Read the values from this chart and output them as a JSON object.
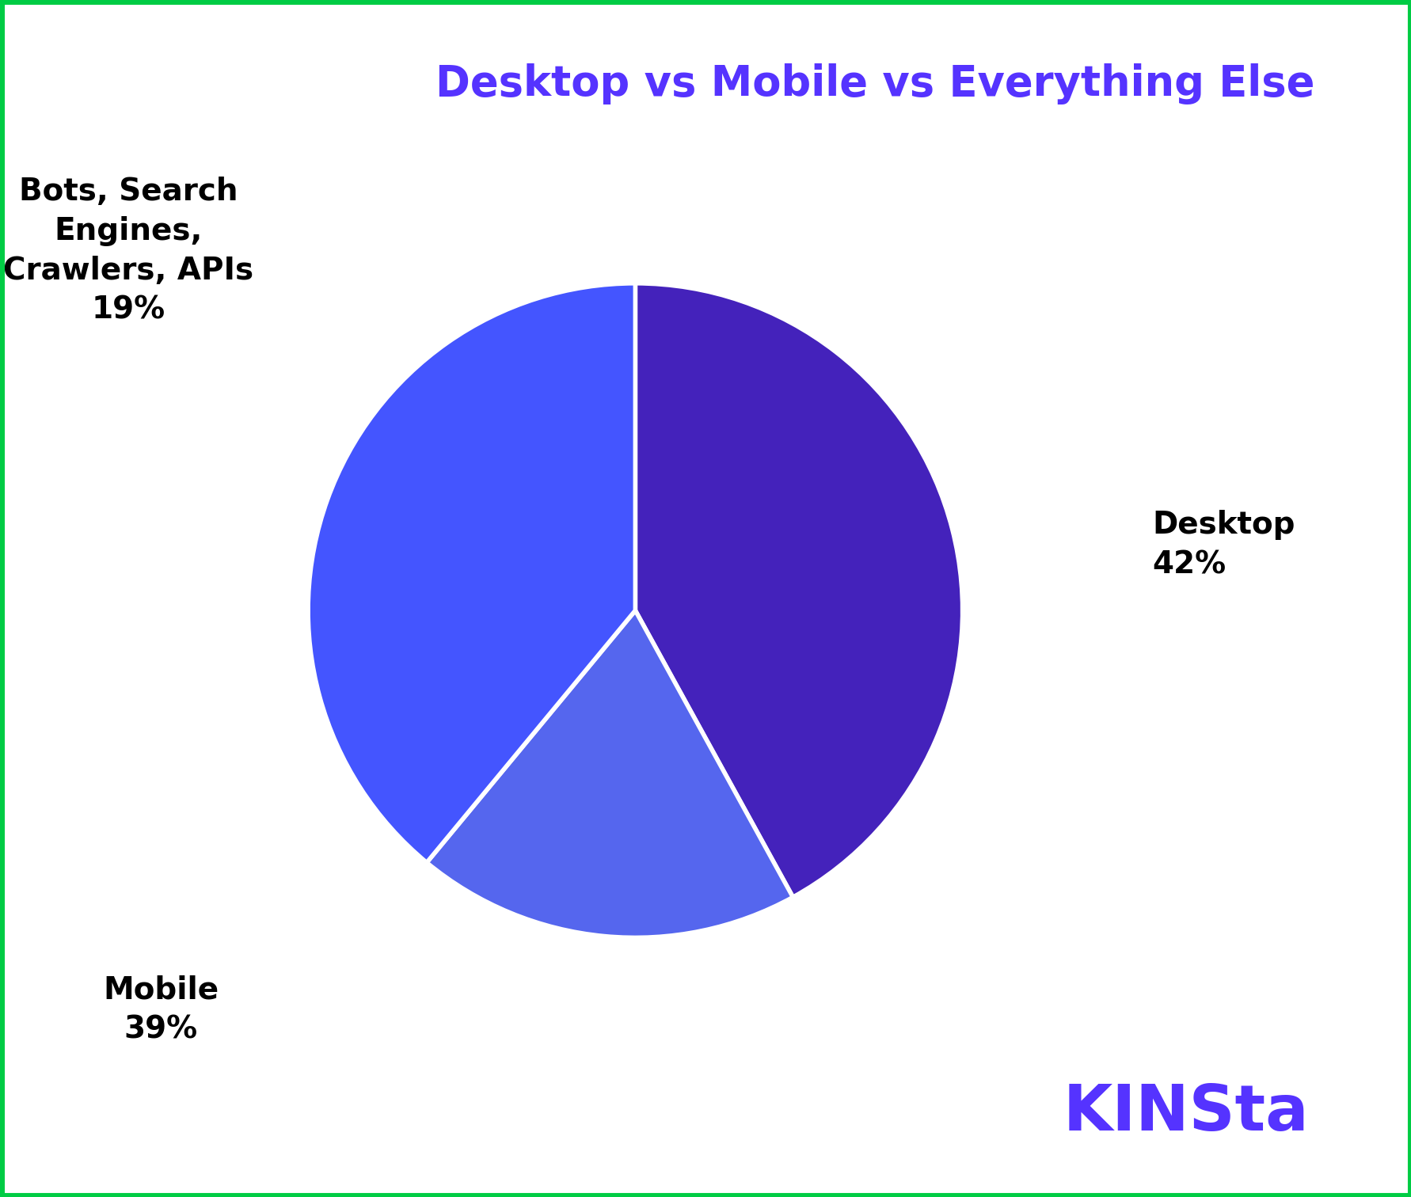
{
  "title": "Desktop vs Mobile vs Everything Else",
  "title_color": "#5533FF",
  "title_fontsize": 38,
  "background_color": "#ffffff",
  "slices": [
    {
      "label": "Desktop",
      "value": 42,
      "color": "#4422BB",
      "label_text": "Desktop\n42%",
      "label_color": "#000000"
    },
    {
      "label": "Bots",
      "value": 19,
      "color": "#5566EE",
      "label_text": "Bots, Search\nEngines,\nCrawlers, APIs\n19%",
      "label_color": "#000000"
    },
    {
      "label": "Mobile",
      "value": 39,
      "color": "#4455FF",
      "label_text": "Mobile\n39%",
      "label_color": "#000000"
    }
  ],
  "wedge_linecolor": "#ffffff",
  "wedge_linewidth": 4,
  "kinsta_text": "KINSta",
  "kinsta_color": "#5533FF",
  "kinsta_fontsize": 58,
  "border_color": "#00CC44",
  "border_linewidth": 8
}
